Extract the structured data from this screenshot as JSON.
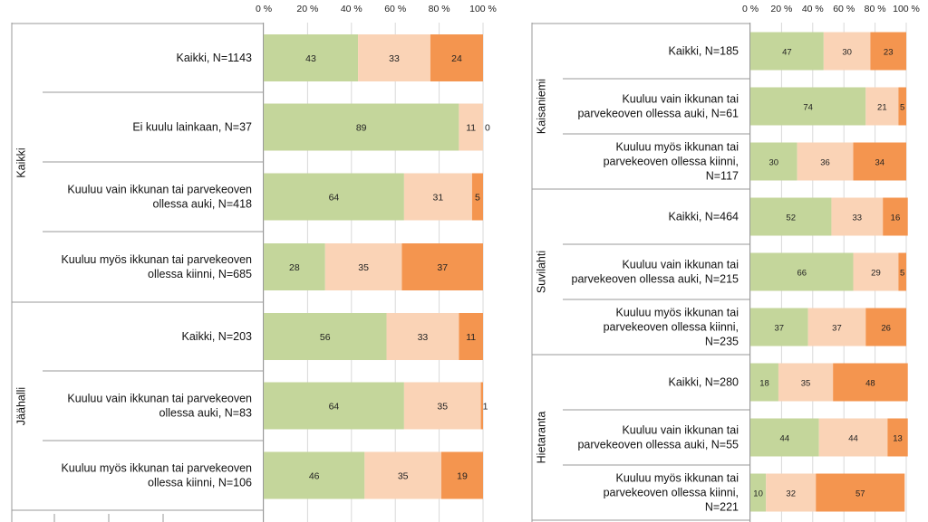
{
  "chart_data": {
    "type": "bar",
    "subtype": "stacked-horizontal-100-percent",
    "x_tick_labels": [
      "0 %",
      "20 %",
      "40 %",
      "60 %",
      "80 %",
      "100 %"
    ],
    "xlim": [
      0,
      100
    ],
    "series_colors": [
      "#c4d69b",
      "#fad3b6",
      "#f4954f"
    ],
    "left_panel": {
      "groups": [
        {
          "name": "Kaikki",
          "rows": [
            {
              "label_lines": [
                "Kaikki, N=1143"
              ],
              "values": [
                43,
                33,
                24
              ]
            },
            {
              "label_lines": [
                "Ei kuulu lainkaan, N=37"
              ],
              "values": [
                89,
                11,
                0
              ]
            },
            {
              "label_lines": [
                "Kuuluu vain ikkunan tai parvekeoven",
                "ollessa auki, N=418"
              ],
              "values": [
                64,
                31,
                5
              ]
            },
            {
              "label_lines": [
                "Kuuluu myös ikkunan tai parvekeoven",
                "ollessa kiinni, N=685"
              ],
              "values": [
                28,
                35,
                37
              ]
            }
          ]
        },
        {
          "name": "Jäähalli",
          "rows": [
            {
              "label_lines": [
                "Kaikki, N=203"
              ],
              "values": [
                56,
                33,
                11
              ]
            },
            {
              "label_lines": [
                "Kuuluu vain ikkunan tai parvekeoven",
                "ollessa auki, N=83"
              ],
              "values": [
                64,
                35,
                1
              ]
            },
            {
              "label_lines": [
                "Kuuluu myös ikkunan tai parvekeoven",
                "ollessa kiinni, N=106"
              ],
              "values": [
                46,
                35,
                19
              ]
            }
          ]
        }
      ]
    },
    "right_panel": {
      "groups": [
        {
          "name": "Kaisaniemi",
          "rows": [
            {
              "label_lines": [
                "Kaikki, N=185"
              ],
              "values": [
                47,
                30,
                23
              ]
            },
            {
              "label_lines": [
                "Kuuluu vain ikkunan tai",
                "parvekeoven ollessa auki, N=61"
              ],
              "values": [
                74,
                21,
                5
              ]
            },
            {
              "label_lines": [
                "Kuuluu myös ikkunan tai",
                "parvekeoven ollessa kiinni,",
                "N=117"
              ],
              "values": [
                30,
                36,
                34
              ]
            }
          ]
        },
        {
          "name": "Suvilahti",
          "rows": [
            {
              "label_lines": [
                "Kaikki, N=464"
              ],
              "values": [
                52,
                33,
                16
              ]
            },
            {
              "label_lines": [
                "Kuuluu vain ikkunan tai",
                "parvekeoven ollessa auki, N=215"
              ],
              "values": [
                66,
                29,
                5
              ]
            },
            {
              "label_lines": [
                "Kuuluu myös ikkunan tai",
                "parvekeoven ollessa kiinni,",
                "N=235"
              ],
              "values": [
                37,
                37,
                26
              ]
            }
          ]
        },
        {
          "name": "Hietaranta",
          "rows": [
            {
              "label_lines": [
                "Kaikki, N=280"
              ],
              "values": [
                18,
                35,
                48
              ]
            },
            {
              "label_lines": [
                "Kuuluu vain ikkunan tai",
                "parvekeoven ollessa auki, N=55"
              ],
              "values": [
                44,
                44,
                13
              ]
            },
            {
              "label_lines": [
                "Kuuluu myös ikkunan tai",
                "parvekeoven ollessa kiinni,",
                "N=221"
              ],
              "values": [
                10,
                32,
                57
              ]
            }
          ]
        }
      ]
    }
  }
}
